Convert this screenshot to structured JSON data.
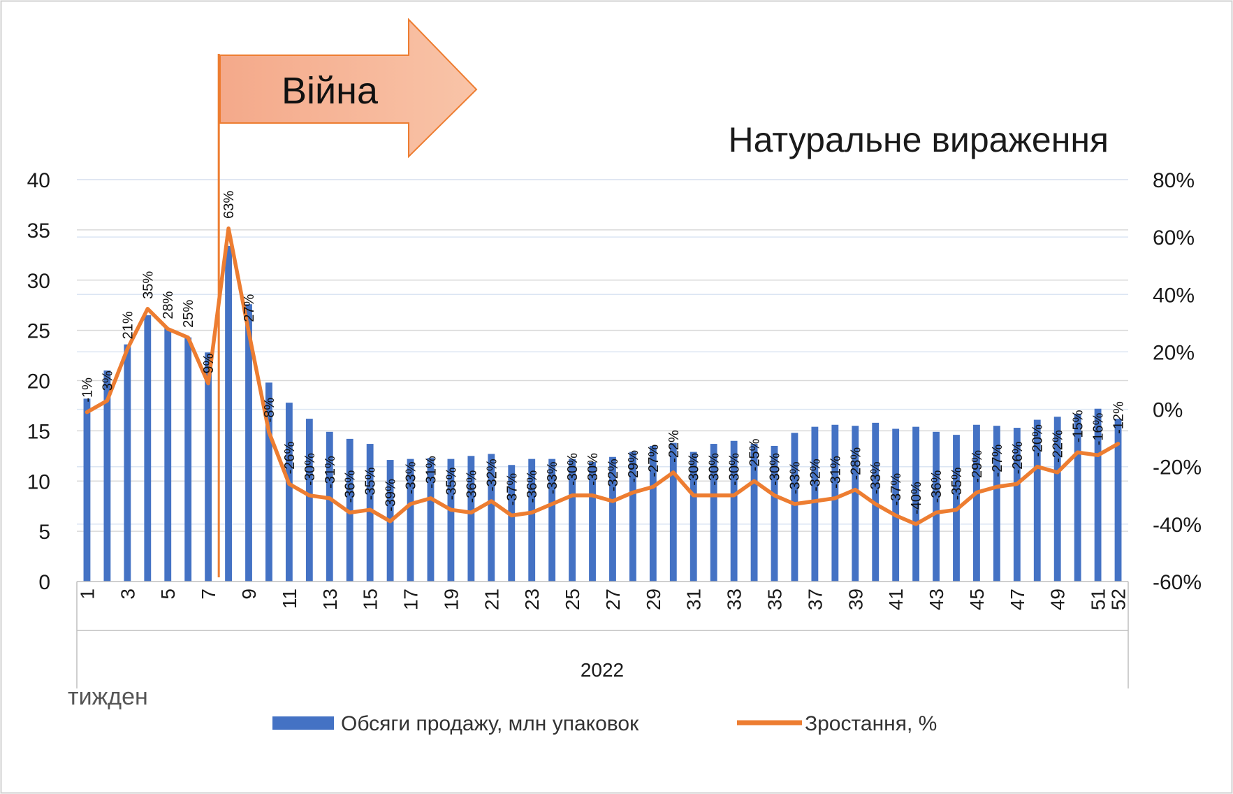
{
  "chart_data": {
    "type": "bar+line",
    "title": "Натуральне вираження",
    "annotation": "Війна",
    "annotation_week": 8,
    "group_label": "2022",
    "xlabel": "тижден",
    "y_left": {
      "range": [
        0,
        40
      ],
      "ticks": [
        "0",
        "5",
        "10",
        "15",
        "20",
        "25",
        "30",
        "35",
        "40"
      ]
    },
    "y_right": {
      "range": [
        -60,
        80
      ],
      "ticks": [
        "-60%",
        "-40%",
        "-20%",
        "0%",
        "20%",
        "40%",
        "60%",
        "80%"
      ]
    },
    "x_tick_labels": [
      "1",
      "3",
      "5",
      "7",
      "9",
      "11",
      "13",
      "15",
      "17",
      "19",
      "21",
      "23",
      "25",
      "27",
      "29",
      "31",
      "33",
      "35",
      "37",
      "39",
      "41",
      "43",
      "45",
      "47",
      "49",
      "51",
      "52"
    ],
    "weeks": [
      1,
      2,
      3,
      4,
      5,
      6,
      7,
      8,
      9,
      10,
      11,
      12,
      13,
      14,
      15,
      16,
      17,
      18,
      19,
      20,
      21,
      22,
      23,
      24,
      25,
      26,
      27,
      28,
      29,
      30,
      31,
      32,
      33,
      34,
      35,
      36,
      37,
      38,
      39,
      40,
      41,
      42,
      43,
      44,
      45,
      46,
      47,
      48,
      49,
      50,
      51,
      52
    ],
    "series": [
      {
        "name": "Обсяги продажу, млн упаковок",
        "type": "bar",
        "axis": "left",
        "color": "#4472C4",
        "values": [
          18.2,
          21.0,
          23.6,
          26.5,
          25.2,
          24.3,
          22.8,
          33.4,
          27.6,
          19.8,
          17.8,
          16.2,
          14.9,
          14.2,
          13.7,
          12.1,
          12.2,
          12.3,
          12.2,
          12.5,
          12.7,
          11.6,
          12.2,
          12.2,
          12.2,
          11.9,
          12.4,
          12.9,
          13.5,
          13.8,
          12.9,
          13.7,
          14.0,
          13.7,
          13.5,
          14.8,
          15.4,
          15.6,
          15.5,
          15.8,
          15.2,
          15.4,
          14.9,
          14.6,
          15.6,
          15.5,
          15.3,
          16.1,
          16.4,
          16.7,
          17.2,
          16.2
        ]
      },
      {
        "name": "Зростання, %",
        "type": "line",
        "axis": "right",
        "color": "#ED7D31",
        "values": [
          -1,
          3,
          21,
          35,
          28,
          25,
          9,
          63,
          27,
          -8,
          -26,
          -30,
          -31,
          -36,
          -35,
          -39,
          -33,
          -31,
          -35,
          -36,
          -32,
          -37,
          -36,
          -33,
          -30,
          -30,
          -32,
          -29,
          -27,
          -22,
          -30,
          -30,
          -30,
          -25,
          -30,
          -33,
          -32,
          -31,
          -28,
          -33,
          -37,
          -40,
          -36,
          -35,
          -29,
          -27,
          -26,
          -20,
          -22,
          -15,
          -16,
          -12
        ],
        "labels": [
          "-1%",
          "3%",
          "21%",
          "35%",
          "28%",
          "25%",
          "9%",
          "63%",
          "27%",
          "-8%",
          "-26%",
          "-30%",
          "-31%",
          "-36%",
          "-35%",
          "-39%",
          "-33%",
          "-31%",
          "-35%",
          "-36%",
          "-32%",
          "-37%",
          "-36%",
          "-33%",
          "-30%",
          "-30%",
          "-32%",
          "-29%",
          "-27%",
          "-22%",
          "-30%",
          "-30%",
          "-30%",
          "-25%",
          "-30%",
          "-33%",
          "-32%",
          "-31%",
          "-28%",
          "-33%",
          "-37%",
          "-40%",
          "-36%",
          "-35%",
          "-29%",
          "-27%",
          "-26%",
          "-20%",
          "-22%",
          "-15%",
          "-16%",
          "-12%"
        ]
      }
    ],
    "grid": true,
    "legend_position": "bottom"
  }
}
